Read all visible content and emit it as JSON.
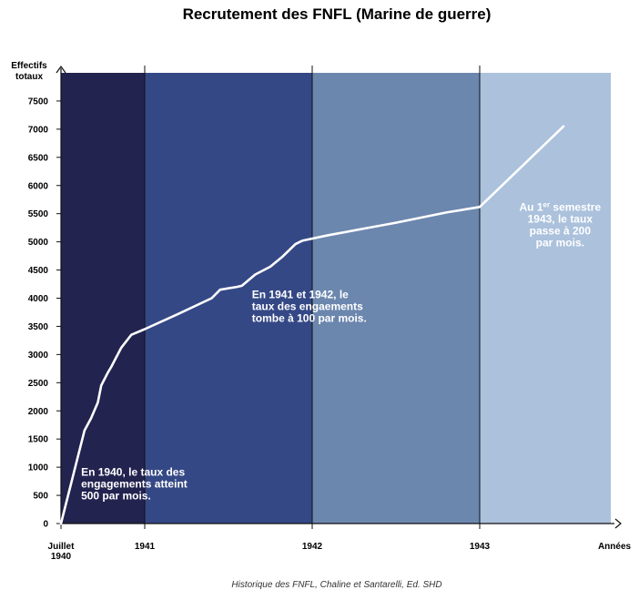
{
  "chart_data": {
    "type": "line",
    "title": "Recrutement des FNFL (Marine de guerre)",
    "ylabel_lines": [
      "Effectifs",
      "totaux"
    ],
    "xlabel": "Années",
    "ylim": [
      0,
      8000
    ],
    "yticks": [
      0,
      500,
      1000,
      1500,
      2000,
      2500,
      3000,
      3500,
      4000,
      4500,
      5000,
      5500,
      6000,
      6500,
      7000,
      7500
    ],
    "xlim": [
      1940.5,
      1944.3
    ],
    "xticks": [
      {
        "value": 1940.5,
        "lines": [
          "Juillet",
          "1940"
        ]
      },
      {
        "value": 1941,
        "lines": [
          "1941"
        ]
      },
      {
        "value": 1942,
        "lines": [
          "1942"
        ]
      },
      {
        "value": 1943,
        "lines": [
          "1943"
        ]
      }
    ],
    "bands": [
      {
        "from": 1940.5,
        "to": 1941,
        "color": "#22234f"
      },
      {
        "from": 1941,
        "to": 1942,
        "color": "#354886"
      },
      {
        "from": 1942,
        "to": 1943,
        "color": "#6c87ae"
      },
      {
        "from": 1943,
        "to": 1944.3,
        "color": "#abc1dc"
      }
    ],
    "grid": false,
    "legend": "none",
    "series": [
      {
        "color": "#ffffff",
        "x": [
          1940.5,
          1940.64,
          1940.68,
          1940.72,
          1940.74,
          1940.78,
          1940.8,
          1940.86,
          1940.92,
          1941.0,
          1941.2,
          1941.4,
          1941.45,
          1941.55,
          1941.58,
          1941.66,
          1941.75,
          1941.82,
          1941.9,
          1941.94,
          1942.1,
          1942.3,
          1942.5,
          1942.8,
          1943.0,
          1943.5
        ],
        "y": [
          0,
          1650,
          1870,
          2150,
          2450,
          2680,
          2780,
          3120,
          3350,
          3450,
          3720,
          4000,
          4150,
          4200,
          4220,
          4420,
          4560,
          4730,
          4960,
          5020,
          5120,
          5230,
          5340,
          5520,
          5620,
          7050
        ]
      }
    ],
    "annotations": [
      {
        "x": 1940.62,
        "y": 850,
        "anchor": "start",
        "lines": [
          "En 1940, le taux des",
          "engagements atteint",
          "500 par mois."
        ]
      },
      {
        "x": 1941.64,
        "y": 4000,
        "anchor": "start",
        "lines": [
          "En 1941 et 1942, le",
          "taux des engaements",
          "tombe à 100 par mois."
        ]
      },
      {
        "x": 1943.48,
        "y": 5550,
        "anchor": "middle",
        "lines": [
          "Au 1",
          "1943, le taux",
          "passe à 200",
          "par mois."
        ],
        "sup": "er",
        "first_line_rest": " semestre"
      }
    ],
    "source": "Historique des FNFL, Chaline et Santarelli, Ed. SHD"
  }
}
